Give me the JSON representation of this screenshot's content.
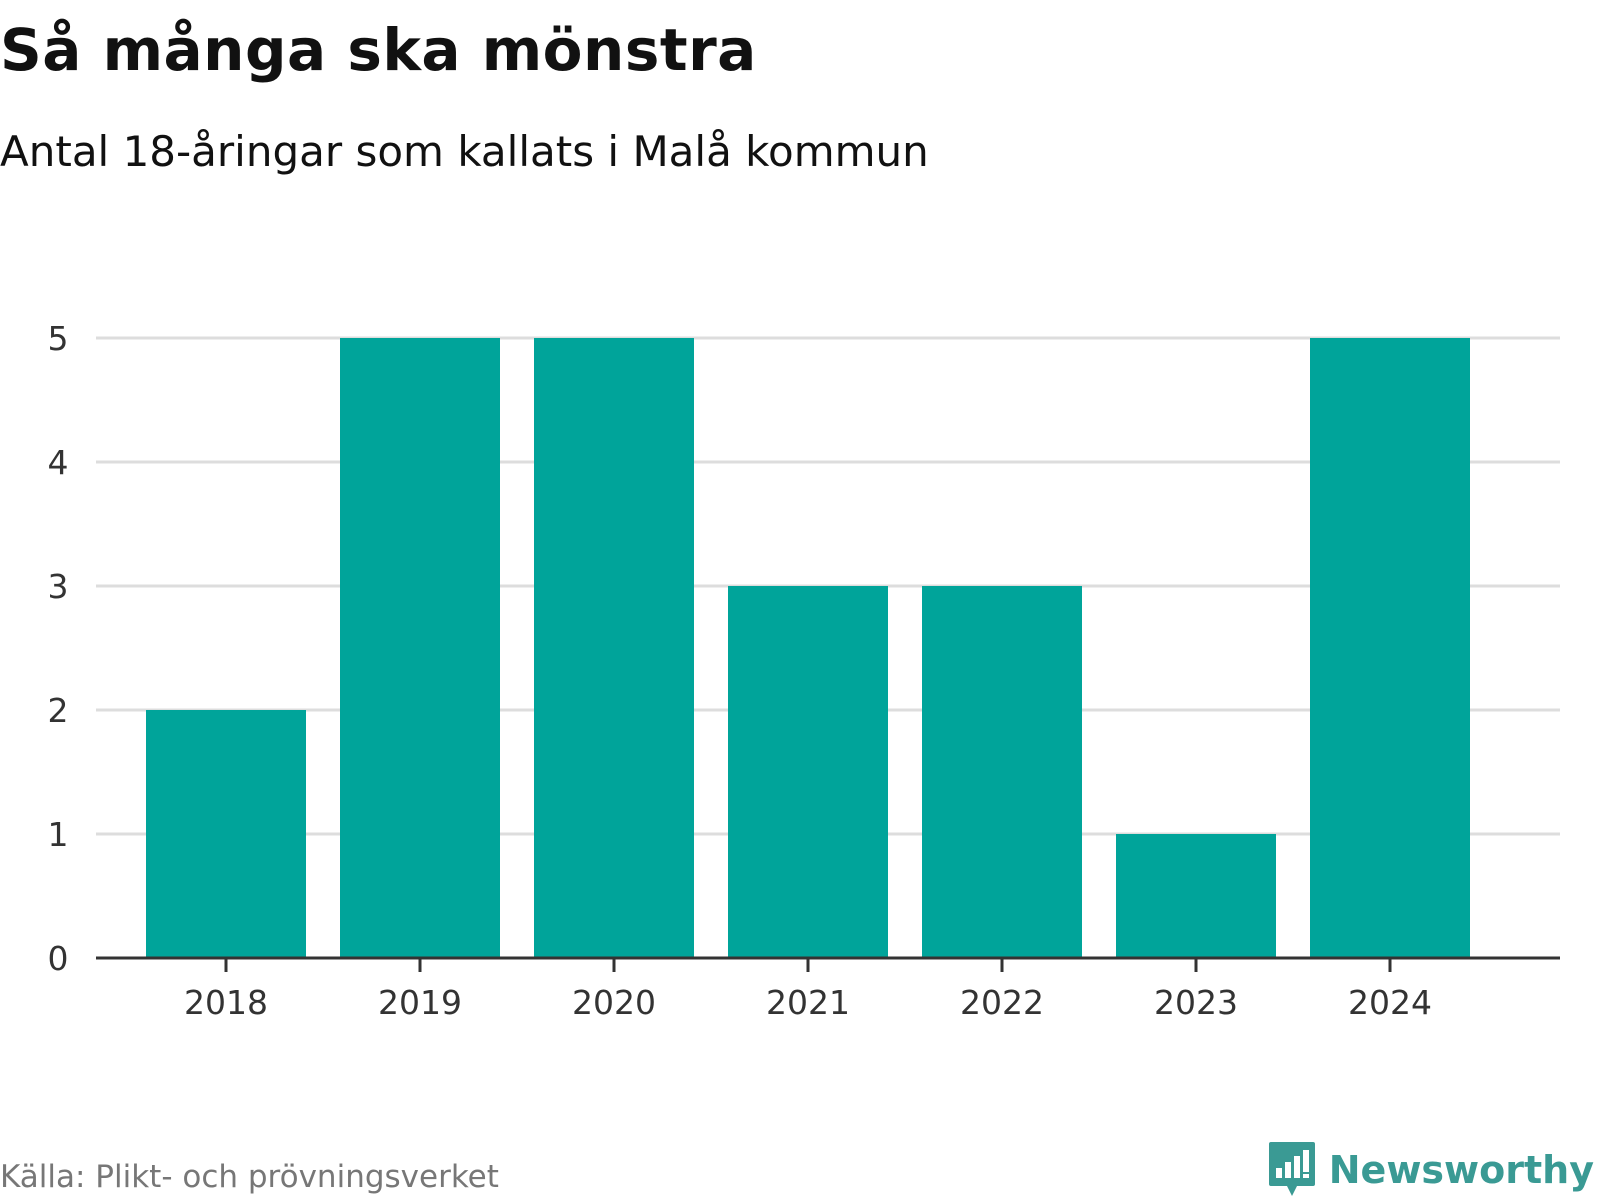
{
  "header": {
    "title": "Så många ska mönstra",
    "subtitle": "Antal 18-åringar som kallats i Malå kommun"
  },
  "chart_data": {
    "type": "bar",
    "title": "Så många ska mönstra",
    "subtitle": "Antal 18-åringar som kallats i Malå kommun",
    "categories": [
      "2018",
      "2019",
      "2020",
      "2021",
      "2022",
      "2023",
      "2024"
    ],
    "values": [
      2,
      5,
      5,
      3,
      3,
      1,
      5
    ],
    "xlabel": "",
    "ylabel": "",
    "ylim": [
      0,
      5
    ],
    "yticks": [
      "0",
      "1",
      "2",
      "3",
      "4",
      "5"
    ],
    "grid": true,
    "legend": "none",
    "bar_color": "#00a49a"
  },
  "footer": {
    "source": "Källa: Plikt- och prövningsverket",
    "brand": "Newsworthy",
    "brand_icon": "newsworthy-logo-icon",
    "brand_color": "#3a9a94"
  }
}
